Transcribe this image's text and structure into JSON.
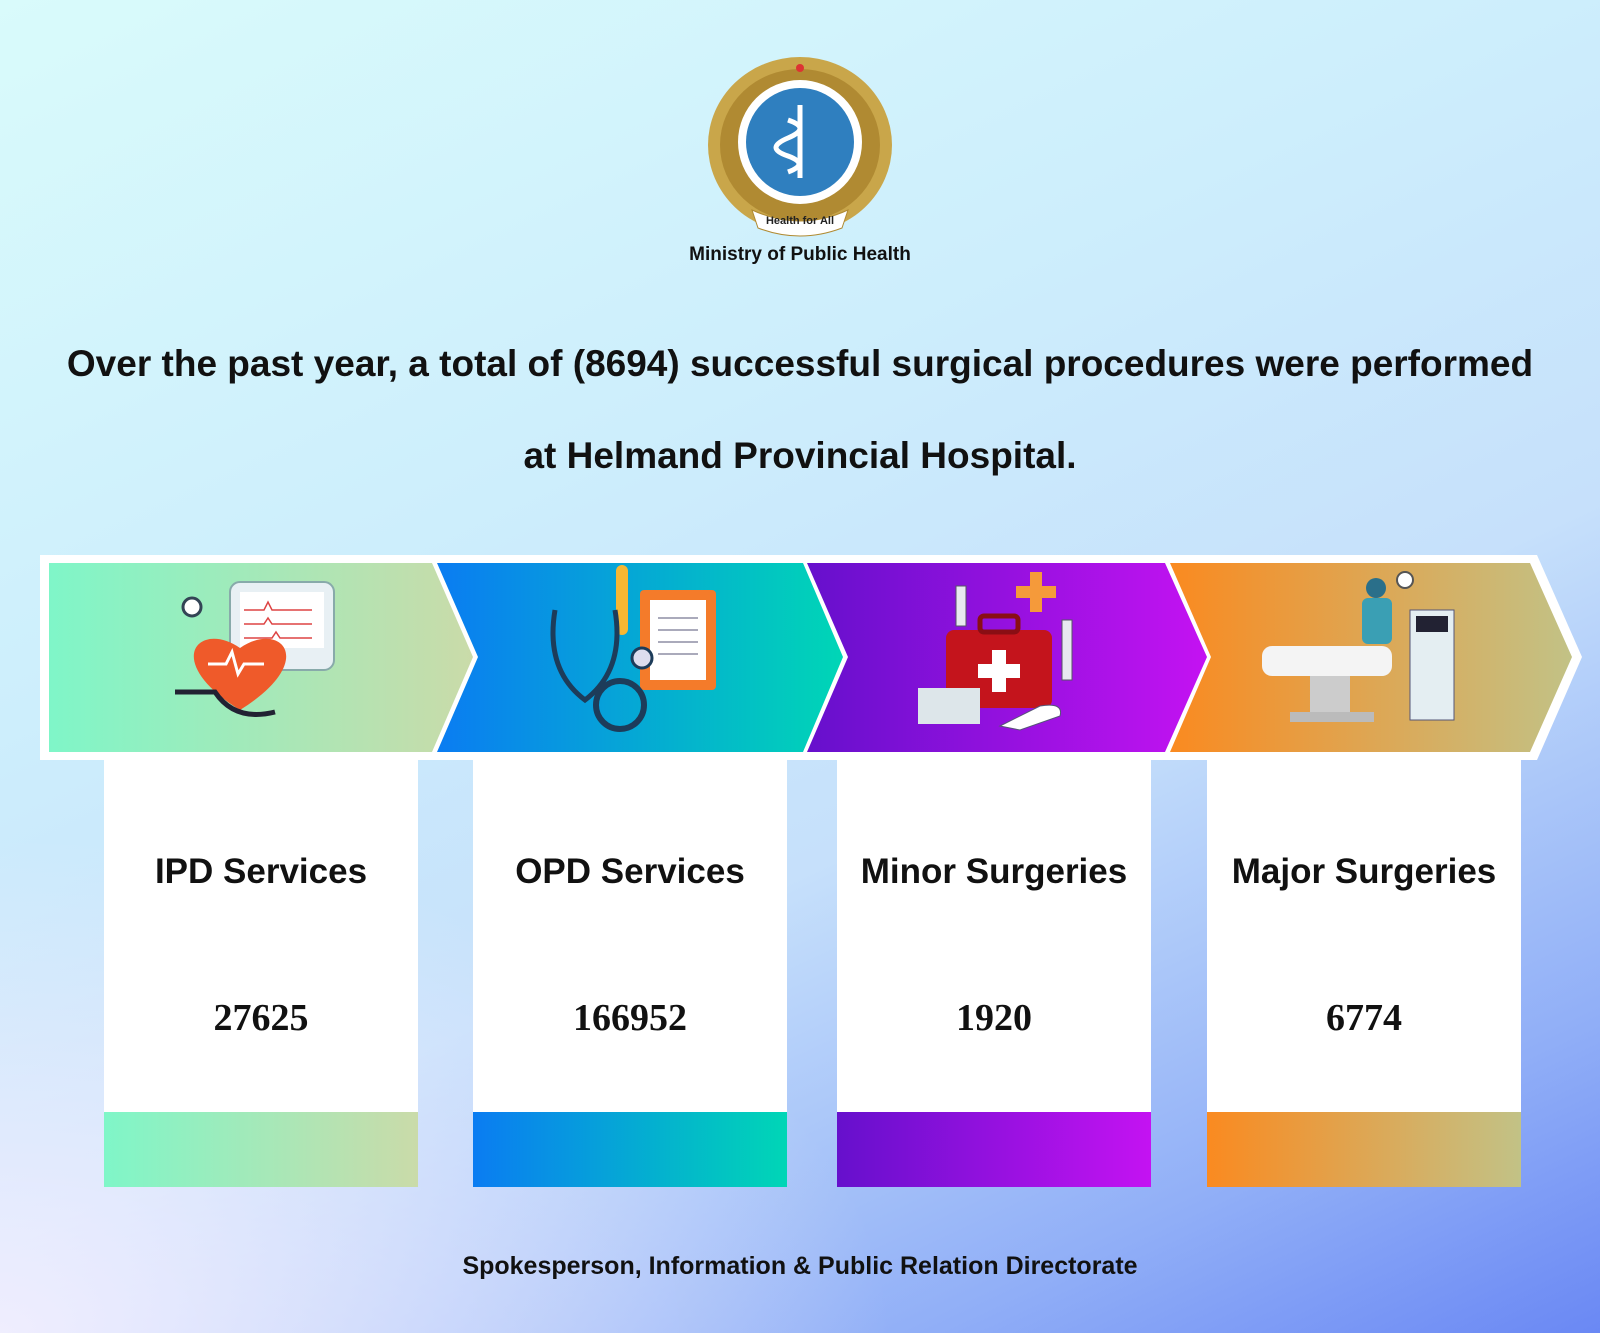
{
  "header": {
    "org": "Ministry of Public Health",
    "motto": "Health for All"
  },
  "headline": "Over the past year, a total of (8694) successful surgical procedures were performed at Helmand Provincial Hospital.",
  "cards": [
    {
      "label": "IPD Services",
      "value": 27625
    },
    {
      "label": "OPD Services",
      "value": 166952
    },
    {
      "label": "Minor Surgeries",
      "value": 1920
    },
    {
      "label": "Major Surgeries",
      "value": 6774
    }
  ],
  "footer": "Spokesperson, Information & Public Relation Directorate"
}
